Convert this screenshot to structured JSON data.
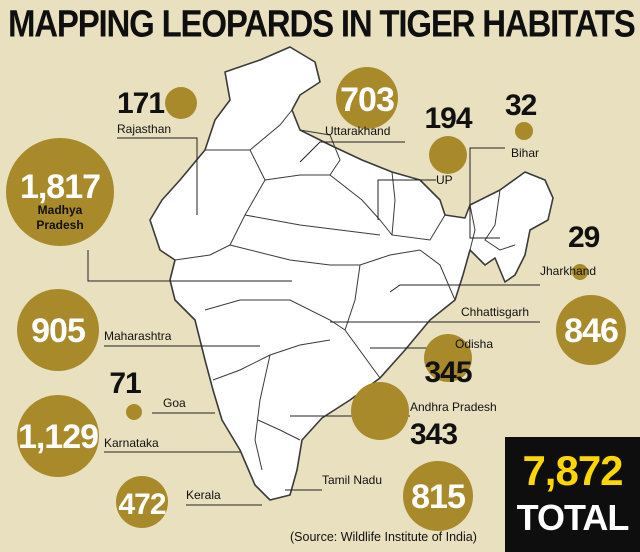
{
  "title": "MAPPING LEOPARDS IN TIGER HABITATS",
  "source": "(Source: Wildlife Institute of India)",
  "total": {
    "value": "7,872",
    "label": "TOTAL"
  },
  "colors": {
    "background": "#e9e0bf",
    "bubble": "#a88a2b",
    "map_fill": "#ffffff",
    "total_value": "#ffd600",
    "total_box": "#0e0e0e"
  },
  "states": [
    {
      "name": "Rajasthan",
      "value": "171"
    },
    {
      "name": "Uttarakhand",
      "value": "703"
    },
    {
      "name": "UP",
      "value": "194"
    },
    {
      "name": "Bihar",
      "value": "32"
    },
    {
      "name": "Madhya Pradesh",
      "value": "1,817"
    },
    {
      "name": "Jharkhand",
      "value": "29"
    },
    {
      "name": "Chhattisgarh",
      "value": "846"
    },
    {
      "name": "Maharashtra",
      "value": "905"
    },
    {
      "name": "Odisha",
      "value": "345"
    },
    {
      "name": "Goa",
      "value": "71"
    },
    {
      "name": "Andhra Pradesh",
      "value": "343"
    },
    {
      "name": "Karnataka",
      "value": "1,129"
    },
    {
      "name": "Tamil Nadu",
      "value": "815"
    },
    {
      "name": "Kerala",
      "value": "472"
    }
  ]
}
